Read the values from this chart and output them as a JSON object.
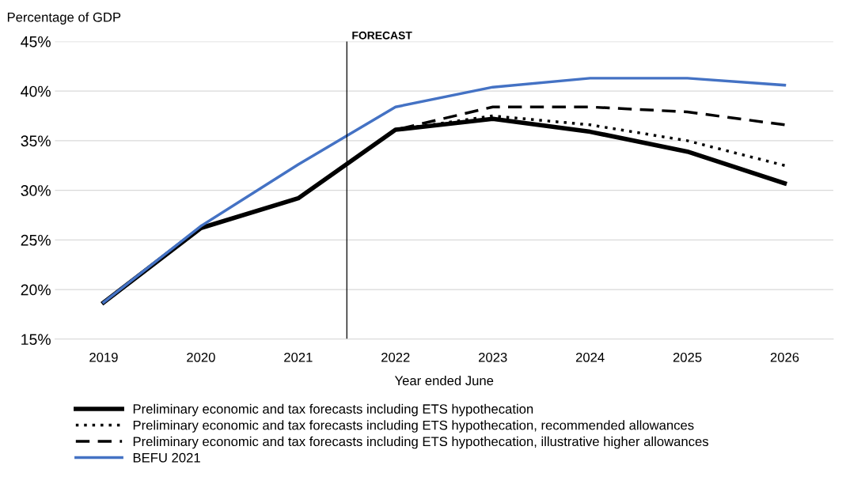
{
  "chart_data": {
    "type": "line",
    "ylabel": "Percentage of GDP",
    "xlabel": "Year ended June",
    "x": [
      2019,
      2020,
      2021,
      2022,
      2023,
      2024,
      2025,
      2026
    ],
    "xlim": [
      2018.5,
      2026.5
    ],
    "xticks": [
      2019,
      2020,
      2021,
      2022,
      2023,
      2024,
      2025,
      2026
    ],
    "ylim": [
      15,
      45
    ],
    "yticks": [
      {
        "value": 15,
        "label": "15%"
      },
      {
        "value": 20,
        "label": "20%"
      },
      {
        "value": 25,
        "label": "25%"
      },
      {
        "value": 30,
        "label": "30%"
      },
      {
        "value": 35,
        "label": "35%"
      },
      {
        "value": 40,
        "label": "40%"
      },
      {
        "value": 45,
        "label": "45%"
      }
    ],
    "grid": "y",
    "legend": "bottom",
    "marker": "none",
    "ref_lines": [
      {
        "axis": "x",
        "value": 2021.5,
        "label": "FORECAST",
        "color": "#000000",
        "line_style": "solid"
      }
    ],
    "series": [
      {
        "name": "Preliminary economic and tax forecasts including ETS hypothecation",
        "color": "#000000",
        "line_style": "solid",
        "values": [
          18.7,
          26.2,
          29.2,
          36.1,
          37.2,
          35.9,
          33.9,
          30.7
        ]
      },
      {
        "name": "Preliminary economic and tax forecasts including ETS hypothecation, recommended allowances",
        "color": "#000000",
        "line_style": "dotted",
        "values": [
          null,
          null,
          null,
          36.1,
          37.5,
          36.6,
          35.0,
          32.5
        ]
      },
      {
        "name": "Preliminary economic and tax forecasts including ETS hypothecation, illustrative higher allowances",
        "color": "#000000",
        "line_style": "dashed",
        "values": [
          null,
          null,
          null,
          36.1,
          38.4,
          38.4,
          37.9,
          36.6
        ]
      },
      {
        "name": "BEFU 2021",
        "color": "#4472c4",
        "line_style": "solid",
        "values": [
          18.7,
          26.4,
          32.6,
          38.4,
          40.4,
          41.3,
          41.3,
          40.6
        ]
      }
    ]
  }
}
